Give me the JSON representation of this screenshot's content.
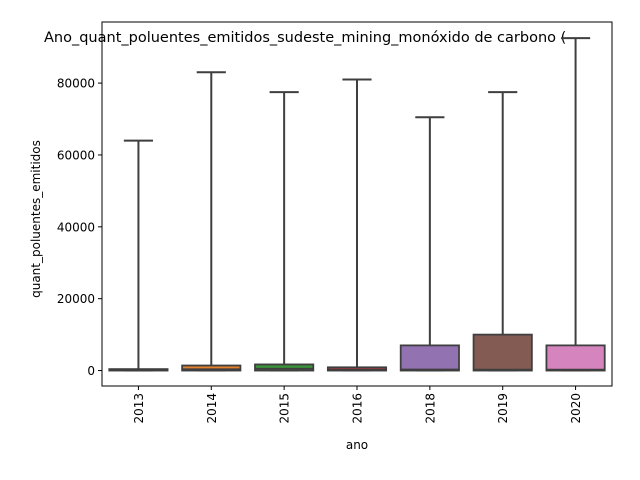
{
  "chart_data": {
    "type": "box",
    "title": "Ano_quant_poluentes_emitidos_sudeste_mining_monóxido de carbono (",
    "xlabel": "ano",
    "ylabel": "quant_poluentes_emitidos",
    "ylim": [
      -4300,
      97000
    ],
    "yticks": [
      0,
      20000,
      40000,
      60000,
      80000
    ],
    "ytick_labels": [
      "0",
      "20000",
      "40000",
      "60000",
      "80000"
    ],
    "grid": false,
    "legend": "none",
    "boxes": [
      {
        "category": "2013",
        "whisker_low": 0,
        "q1": 0,
        "median": 150,
        "q3": 400,
        "whisker_high": 64000,
        "color": "#3274a1"
      },
      {
        "category": "2014",
        "whisker_low": 0,
        "q1": 0,
        "median": 350,
        "q3": 1400,
        "whisker_high": 83000,
        "color": "#e1812c"
      },
      {
        "category": "2015",
        "whisker_low": 0,
        "q1": 0,
        "median": 500,
        "q3": 1700,
        "whisker_high": 77500,
        "color": "#3a923a"
      },
      {
        "category": "2016",
        "whisker_low": 0,
        "q1": 0,
        "median": 250,
        "q3": 900,
        "whisker_high": 81000,
        "color": "#c03d3e"
      },
      {
        "category": "2018",
        "whisker_low": 0,
        "q1": 0,
        "median": 300,
        "q3": 7000,
        "whisker_high": 70500,
        "color": "#9372b2"
      },
      {
        "category": "2019",
        "whisker_low": 0,
        "q1": 0,
        "median": 250,
        "q3": 10000,
        "whisker_high": 77500,
        "color": "#845b53"
      },
      {
        "category": "2020",
        "whisker_low": 0,
        "q1": 0,
        "median": 250,
        "q3": 7000,
        "whisker_high": 92500,
        "color": "#d684bd"
      }
    ]
  }
}
